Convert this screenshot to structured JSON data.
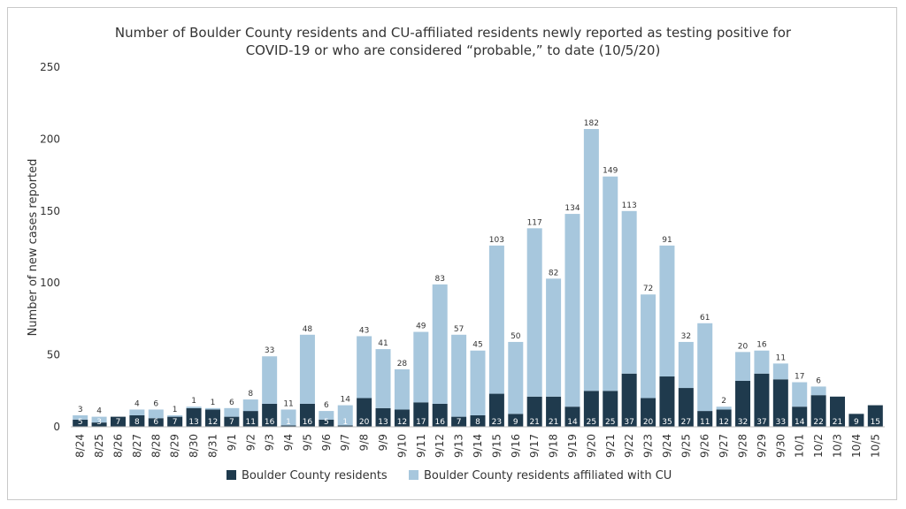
{
  "chart_data": {
    "type": "bar",
    "stacked": true,
    "title": [
      "Number of Boulder County residents and CU-affiliated residents newly reported as testing positive for",
      "COVID-19 or who are considered “probable,” to date (10/5/20)"
    ],
    "ylabel": "Number of new cases reported",
    "xlabel": "",
    "ylim": [
      0,
      250
    ],
    "yticks": [
      0,
      50,
      100,
      150,
      200,
      250
    ],
    "grid": false,
    "legend_position": "bottom",
    "categories": [
      "8/24",
      "8/25",
      "8/26",
      "8/27",
      "8/28",
      "8/29",
      "8/30",
      "8/31",
      "9/1",
      "9/2",
      "9/3",
      "9/4",
      "9/5",
      "9/6",
      "9/7",
      "9/8",
      "9/9",
      "9/10",
      "9/11",
      "9/12",
      "9/13",
      "9/14",
      "9/15",
      "9/16",
      "9/17",
      "9/18",
      "9/19",
      "9/20",
      "9/21",
      "9/22",
      "9/23",
      "9/24",
      "9/25",
      "9/26",
      "9/27",
      "9/28",
      "9/29",
      "9/30",
      "10/1",
      "10/2",
      "10/3",
      "10/4",
      "10/5"
    ],
    "series": [
      {
        "name": "Boulder County residents",
        "color": "#1f3a4d",
        "values": [
          5,
          3,
          7,
          8,
          6,
          7,
          13,
          12,
          7,
          11,
          16,
          1,
          16,
          5,
          1,
          20,
          13,
          12,
          17,
          16,
          7,
          8,
          23,
          9,
          21,
          21,
          14,
          25,
          25,
          37,
          20,
          35,
          27,
          11,
          12,
          32,
          37,
          33,
          14,
          22,
          21,
          9,
          15
        ]
      },
      {
        "name": "Boulder County residents affiliated with CU",
        "color": "#a7c7dd",
        "values": [
          3,
          4,
          0,
          4,
          6,
          1,
          1,
          1,
          6,
          8,
          33,
          11,
          48,
          6,
          14,
          43,
          41,
          28,
          49,
          83,
          57,
          45,
          103,
          50,
          117,
          82,
          134,
          182,
          149,
          113,
          72,
          91,
          32,
          61,
          2,
          20,
          16,
          11,
          17,
          6,
          0,
          0,
          0
        ]
      }
    ],
    "labels": {
      "bottom": [
        "5",
        "3",
        "7",
        "8",
        "6",
        "7",
        "13",
        "12",
        "7",
        "11",
        "16",
        "1",
        "16",
        "5",
        "1",
        "20",
        "13",
        "12",
        "17",
        "16",
        "7",
        "8",
        "23",
        "9",
        "21",
        "21",
        "14",
        "25",
        "25",
        "37",
        "20",
        "35",
        "27",
        "11",
        "12",
        "32",
        "37",
        "33",
        "14",
        "22",
        "21",
        "9",
        "15"
      ],
      "top": [
        "3",
        "4",
        "",
        "4",
        "6",
        "1",
        "1",
        "1",
        "6",
        "8",
        "33",
        "11",
        "48",
        "6",
        "14",
        "43",
        "41",
        "28",
        "49",
        "83",
        "57",
        "45",
        "103",
        "50",
        "117",
        "82",
        "134",
        "182",
        "149",
        "113",
        "72",
        "91",
        "32",
        "61",
        "2",
        "20",
        "16",
        "11",
        "17",
        "6",
        "",
        "",
        ""
      ]
    }
  }
}
